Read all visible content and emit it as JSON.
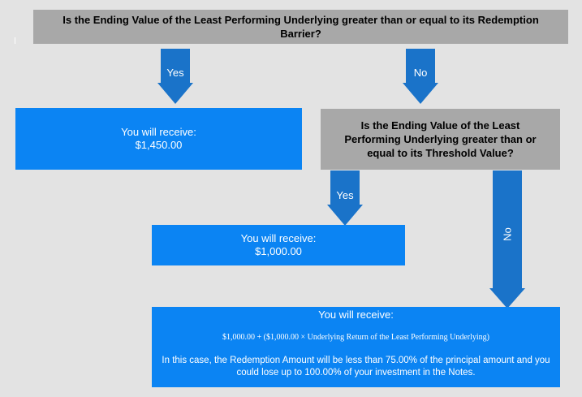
{
  "question_1": "Is the Ending Value of the Least Performing Underlying greater than or equal to its Redemption Barrier?",
  "q1_yes": "Yes",
  "q1_no": "No",
  "outcome_1": {
    "line1": "You will receive:",
    "line2": "$1,450.00"
  },
  "question_2": "Is the Ending Value of the Least Performing Underlying greater than or equal to its Threshold Value?",
  "q2_yes": "Yes",
  "q2_no": "No",
  "outcome_2": {
    "line1": "You will receive:",
    "line2": "$1,000.00"
  },
  "outcome_3": {
    "line1": "You will receive:",
    "formula": "$1,000.00 + ($1,000.00 × Underlying Return of the Least Performing Underlying)",
    "note": "In this case, the Redemption Amount will be less than 75.00% of the principal amount and you could lose up to 100.00% of your investment in the Notes."
  },
  "colors": {
    "gray_box": "#a8a8a8",
    "blue_box": "#0b84f3",
    "arrow": "#1a73c9",
    "background": "#e3e3e3"
  }
}
